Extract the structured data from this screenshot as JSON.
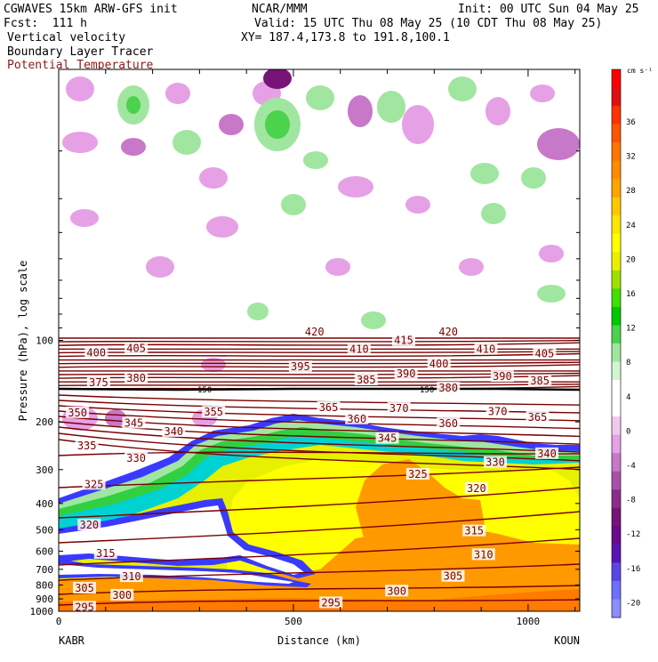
{
  "header": {
    "model": "CGWAVES 15km ARW-GFS init",
    "org": "NCAR/MMM",
    "init": "Init: 00 UTC Sun 04 May 25",
    "fcst": "Fcst:  111 h",
    "valid": "Valid: 15 UTC Thu 08 May 25 (10 CDT Thu 08 May 25)",
    "field1": "Vertical velocity",
    "xy": "XY= 187.4,173.8 to 191.8,100.1",
    "field2": "Boundary Layer Tracer",
    "field3": "Potential Temperature"
  },
  "colors": {
    "theta_line": "#7a0000",
    "field3_text": "#8b1a1a",
    "tropopause": "#000000"
  },
  "chart_data": {
    "type": "heatmap",
    "title": "Vertical velocity / Boundary Layer Tracer / Potential Temperature cross section",
    "xlabel": "Distance (km)",
    "ylabel": "Pressure (hPa), log scale",
    "x_ticks": [
      "0",
      "500",
      "1000"
    ],
    "x_tick_values": [
      0,
      500,
      1000
    ],
    "x_range_km": [
      0,
      1110
    ],
    "y_scale": "log",
    "y_range_hpa": [
      1000,
      10
    ],
    "y_ticks": [
      "100",
      "200",
      "300",
      "400",
      "500",
      "600",
      "700",
      "800",
      "900",
      "1000"
    ],
    "y_tick_values": [
      100,
      200,
      300,
      400,
      500,
      600,
      700,
      800,
      900,
      1000
    ],
    "endpoints": {
      "left": "KABR",
      "right": "KOUN"
    },
    "colorbar": {
      "unit": "cm s⁻¹",
      "labels": [
        "36",
        "32",
        "28",
        "24",
        "20",
        "16",
        "12",
        "8",
        "4",
        "0",
        "-4",
        "-8",
        "-12",
        "-16",
        "-20"
      ],
      "colors": [
        "#ff0000",
        "#e01010",
        "#ff3300",
        "#ff5500",
        "#ff7700",
        "#ff8c00",
        "#ffa500",
        "#ffc800",
        "#ffe600",
        "#ffff00",
        "#e8f000",
        "#a0e000",
        "#40e000",
        "#00c800",
        "#4cd24c",
        "#a0e6a0",
        "#d2f5d2",
        "#ffffff",
        "#ffffff",
        "#f0c8f0",
        "#e6a0e6",
        "#c878c8",
        "#aa50aa",
        "#8c2d8c",
        "#781478",
        "#6a0a8c",
        "#5a14b4",
        "#5a46e6",
        "#6e6eff",
        "#8c8cff"
      ]
    },
    "tropopause_label": "150",
    "theta_labels": [
      {
        "v": "420",
        "x": 545,
        "p": 93
      },
      {
        "v": "420",
        "x": 830,
        "p": 93
      },
      {
        "v": "415",
        "x": 735,
        "p": 100
      },
      {
        "v": "410",
        "x": 640,
        "p": 108
      },
      {
        "v": "410",
        "x": 910,
        "p": 108
      },
      {
        "v": "405",
        "x": 165,
        "p": 107
      },
      {
        "v": "405",
        "x": 1035,
        "p": 112
      },
      {
        "v": "400",
        "x": 80,
        "p": 111
      },
      {
        "v": "400",
        "x": 810,
        "p": 122
      },
      {
        "v": "395",
        "x": 515,
        "p": 125
      },
      {
        "v": "390",
        "x": 740,
        "p": 133
      },
      {
        "v": "390",
        "x": 945,
        "p": 136
      },
      {
        "v": "385",
        "x": 655,
        "p": 140
      },
      {
        "v": "385",
        "x": 1025,
        "p": 141
      },
      {
        "v": "380",
        "x": 165,
        "p": 138
      },
      {
        "v": "375",
        "x": 85,
        "p": 143
      },
      {
        "v": "380",
        "x": 830,
        "p": 150
      },
      {
        "v": "365",
        "x": 575,
        "p": 177
      },
      {
        "v": "370",
        "x": 725,
        "p": 178
      },
      {
        "v": "370",
        "x": 935,
        "p": 183
      },
      {
        "v": "365",
        "x": 1020,
        "p": 192
      },
      {
        "v": "360",
        "x": 635,
        "p": 195
      },
      {
        "v": "360",
        "x": 830,
        "p": 203
      },
      {
        "v": "355",
        "x": 330,
        "p": 184
      },
      {
        "v": "350",
        "x": 40,
        "p": 185
      },
      {
        "v": "345",
        "x": 160,
        "p": 202
      },
      {
        "v": "345",
        "x": 700,
        "p": 230
      },
      {
        "v": "340",
        "x": 245,
        "p": 217
      },
      {
        "v": "340",
        "x": 1040,
        "p": 262
      },
      {
        "v": "335",
        "x": 60,
        "p": 245
      },
      {
        "v": "330",
        "x": 165,
        "p": 272
      },
      {
        "v": "330",
        "x": 930,
        "p": 282
      },
      {
        "v": "325",
        "x": 75,
        "p": 340
      },
      {
        "v": "325",
        "x": 765,
        "p": 312
      },
      {
        "v": "320",
        "x": 65,
        "p": 480
      },
      {
        "v": "320",
        "x": 890,
        "p": 352
      },
      {
        "v": "315",
        "x": 100,
        "p": 612
      },
      {
        "v": "315",
        "x": 885,
        "p": 505
      },
      {
        "v": "310",
        "x": 155,
        "p": 745
      },
      {
        "v": "310",
        "x": 905,
        "p": 618
      },
      {
        "v": "305",
        "x": 55,
        "p": 822
      },
      {
        "v": "305",
        "x": 840,
        "p": 743
      },
      {
        "v": "300",
        "x": 135,
        "p": 872
      },
      {
        "v": "300",
        "x": 720,
        "p": 842
      },
      {
        "v": "295",
        "x": 55,
        "p": 965
      },
      {
        "v": "295",
        "x": 580,
        "p": 930
      }
    ]
  }
}
